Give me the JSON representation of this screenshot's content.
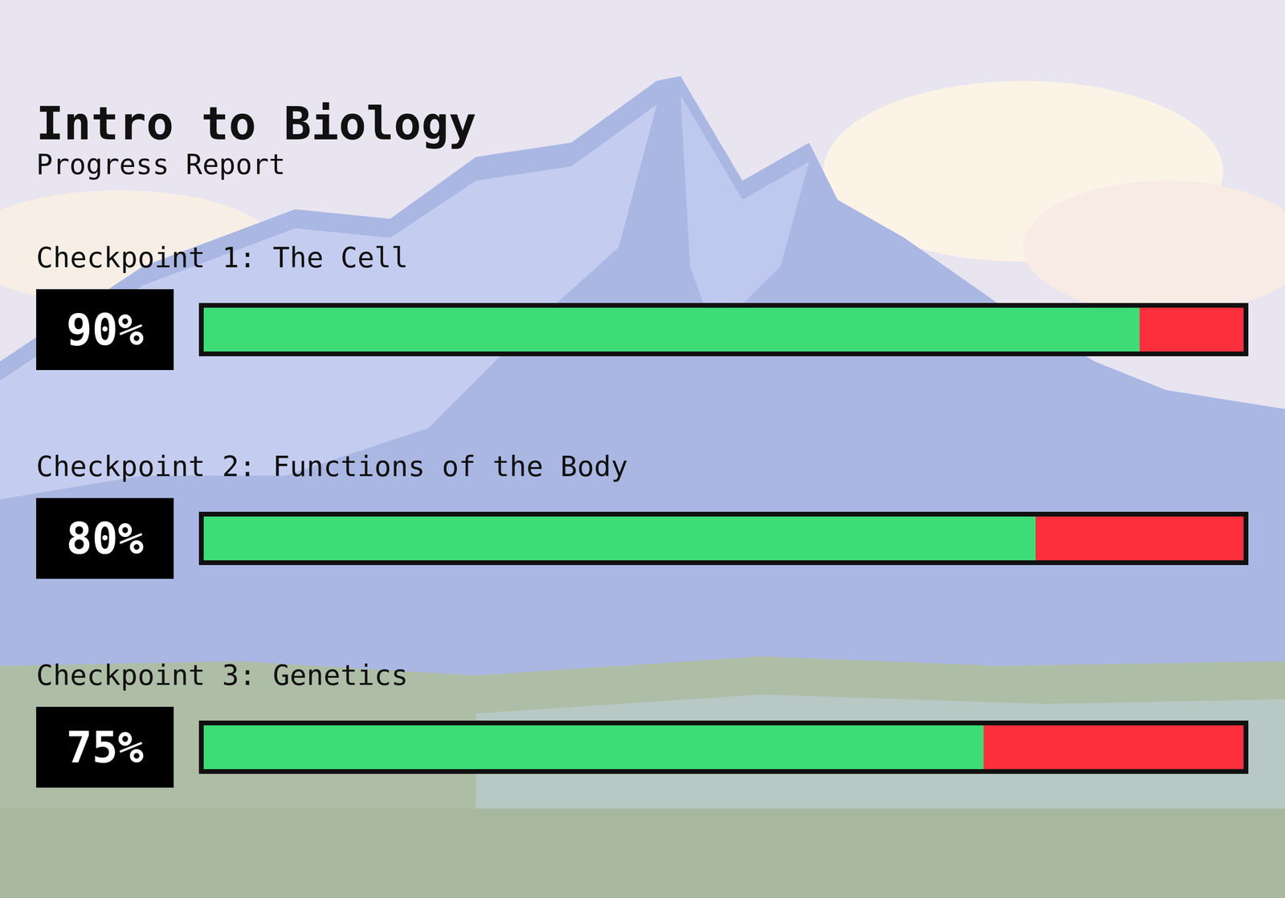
{
  "chart_data": {
    "type": "bar",
    "orientation": "horizontal",
    "title": "Intro to Biology",
    "subtitle": "Progress Report",
    "categories": [
      "Checkpoint 1: The Cell",
      "Checkpoint 2: Functions of the Body",
      "Checkpoint 3: Genetics"
    ],
    "values": [
      90,
      80,
      75
    ],
    "value_labels": [
      "90%",
      "80%",
      "75%"
    ],
    "color": "#3ddc77",
    "xlim": [
      0,
      100
    ],
    "data_labels": true,
    "tick_labels": false,
    "grid": false
  }
}
